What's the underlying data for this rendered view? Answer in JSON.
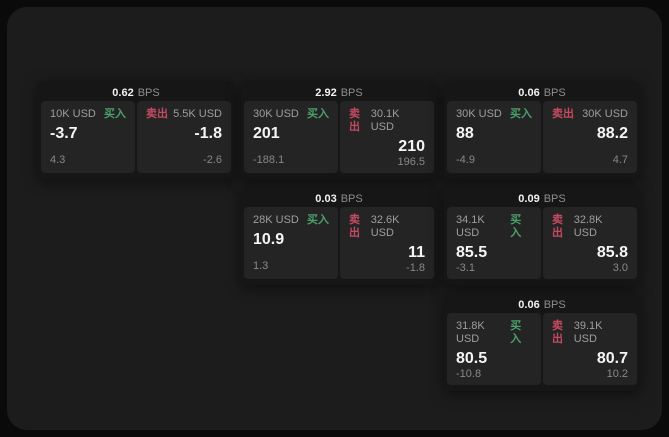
{
  "labels": {
    "bps_unit": "BPS",
    "buy": "买入",
    "sell": "卖出"
  },
  "colors": {
    "buy_green": "#4ba06a",
    "sell_red": "#c54a62",
    "page_bg": "#1c1c1c",
    "card_bg": "#161616",
    "panel_bg": "#242424"
  },
  "cards": [
    {
      "bps": "0.62",
      "buy": {
        "amount": "10K USD",
        "price": "-3.7",
        "delta": "4.3"
      },
      "sell": {
        "amount": "5.5K USD",
        "price": "-1.8",
        "delta": "-2.6"
      }
    },
    {
      "bps": "2.92",
      "buy": {
        "amount": "30K USD",
        "price": "201",
        "delta": "-188.1"
      },
      "sell": {
        "amount": "30.1K USD",
        "price": "210",
        "delta": "196.5"
      }
    },
    {
      "bps": "0.06",
      "buy": {
        "amount": "30K USD",
        "price": "88",
        "delta": "-4.9"
      },
      "sell": {
        "amount": "30K USD",
        "price": "88.2",
        "delta": "4.7"
      }
    },
    {
      "bps": "0.03",
      "buy": {
        "amount": "28K USD",
        "price": "10.9",
        "delta": "1.3"
      },
      "sell": {
        "amount": "32.6K USD",
        "price": "11",
        "delta": "-1.8"
      }
    },
    {
      "bps": "0.09",
      "buy": {
        "amount": "34.1K USD",
        "price": "85.5",
        "delta": "-3.1"
      },
      "sell": {
        "amount": "32.8K USD",
        "price": "85.8",
        "delta": "3.0"
      }
    },
    {
      "bps": "0.06",
      "buy": {
        "amount": "31.8K USD",
        "price": "80.5",
        "delta": "-10.8"
      },
      "sell": {
        "amount": "39.1K USD",
        "price": "80.7",
        "delta": "10.2"
      }
    }
  ]
}
